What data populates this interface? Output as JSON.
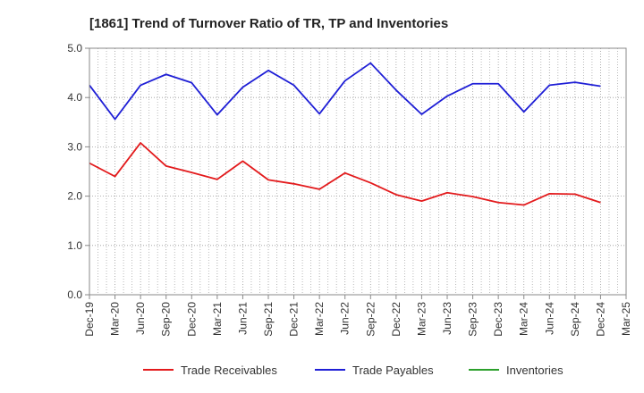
{
  "chart_data": {
    "type": "line",
    "title": "[1861]  Trend of Turnover Ratio of TR, TP and Inventories",
    "xlabel": "",
    "ylabel": "",
    "ylim": [
      0,
      5
    ],
    "yticks": [
      "0.0",
      "1.0",
      "2.0",
      "3.0",
      "4.0",
      "5.0"
    ],
    "x": [
      "Dec-19",
      "Mar-20",
      "Jun-20",
      "Sep-20",
      "Dec-20",
      "Mar-21",
      "Jun-21",
      "Sep-21",
      "Dec-21",
      "Mar-22",
      "Jun-22",
      "Sep-22",
      "Dec-22",
      "Mar-23",
      "Jun-23",
      "Sep-23",
      "Dec-23",
      "Mar-24",
      "Jun-24",
      "Sep-24",
      "Dec-24",
      "Mar-25"
    ],
    "x_minor_per_major": 3,
    "grid": true,
    "legend_position": "bottom",
    "series": [
      {
        "name": "Trade Receivables",
        "color": "#e31a1c",
        "values": [
          2.67,
          2.4,
          3.08,
          2.61,
          2.48,
          2.34,
          2.71,
          2.33,
          2.25,
          2.14,
          2.47,
          2.27,
          2.03,
          1.9,
          2.07,
          1.99,
          1.87,
          1.82,
          2.05,
          2.04,
          1.87,
          null
        ]
      },
      {
        "name": "Trade Payables",
        "color": "#1f1fd6",
        "values": [
          4.25,
          3.56,
          4.25,
          4.47,
          4.3,
          3.65,
          4.21,
          4.55,
          4.25,
          3.67,
          4.34,
          4.7,
          4.15,
          3.66,
          4.03,
          4.28,
          4.28,
          3.71,
          4.25,
          4.31,
          4.23,
          null
        ]
      },
      {
        "name": "Inventories",
        "color": "#2ca02c",
        "values": [
          null,
          null,
          null,
          null,
          null,
          null,
          null,
          null,
          null,
          null,
          null,
          null,
          null,
          null,
          null,
          null,
          null,
          null,
          null,
          null,
          null,
          null
        ]
      }
    ]
  }
}
